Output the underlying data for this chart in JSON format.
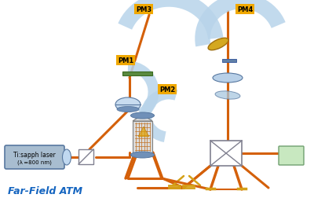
{
  "bg_color": "#ffffff",
  "title": "Far-Field ATM",
  "title_color": "#1565C0",
  "laser_label": "Ti:sapph laser",
  "laser_sublabel": "(λ =800 nm)",
  "orange": "#D4600A",
  "gold": "#D4A017",
  "light_blue": "#B8D4EA",
  "blue_dark": "#5878A0",
  "green_filter": "#5A8A40",
  "light_green_det": "#C8E8C0",
  "label_bg": "#F0A800",
  "gray_laser": "#A8BDD0",
  "emitter_gray": "#C8C8C8",
  "white": "#FFFFFF",
  "black": "#000000",
  "pm_lw": 14,
  "beam_lw": 2.2
}
